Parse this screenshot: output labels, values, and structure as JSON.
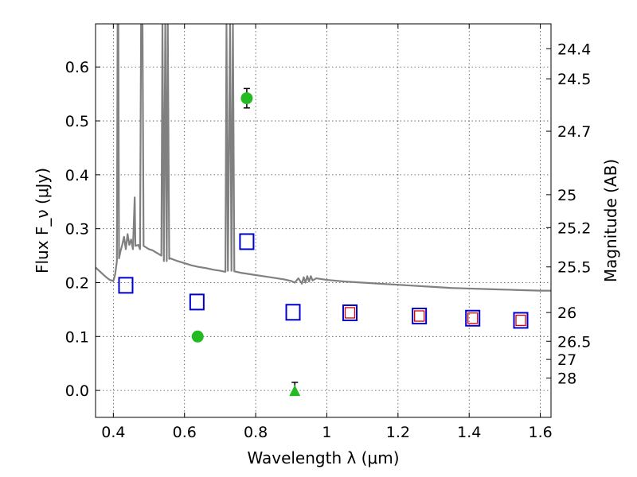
{
  "chart_data": {
    "type": "scatter",
    "xlabel": "Wavelength λ (μm)",
    "ylabel": "Flux F_ν (μJy)",
    "ylabel_right": "Magnitude (AB)",
    "xlim": [
      0.35,
      1.63
    ],
    "ylim": [
      -0.05,
      0.68
    ],
    "x_ticks": [
      0.4,
      0.6,
      0.8,
      1.0,
      1.2,
      1.4,
      1.6
    ],
    "x_tick_labels": [
      "0.4",
      "0.6",
      "0.8",
      "1",
      "1.2",
      "1.4",
      "1.6"
    ],
    "y_ticks": [
      0.0,
      0.1,
      0.2,
      0.3,
      0.4,
      0.5,
      0.6
    ],
    "y_tick_labels": [
      "0.0",
      "0.1",
      "0.2",
      "0.3",
      "0.4",
      "0.5",
      "0.6"
    ],
    "right_ticks": [
      {
        "label": "24.4",
        "flux": 0.6339
      },
      {
        "label": "24.5",
        "flux": 0.5781
      },
      {
        "label": "24.7",
        "flux": 0.4808
      },
      {
        "label": "25",
        "flux": 0.3631
      },
      {
        "label": "25.2",
        "flux": 0.302
      },
      {
        "label": "25.5",
        "flux": 0.2291
      },
      {
        "label": "26",
        "flux": 0.1445
      },
      {
        "label": "26.5",
        "flux": 0.0912
      },
      {
        "label": "27",
        "flux": 0.0575
      },
      {
        "label": "28",
        "flux": 0.0229
      }
    ],
    "grid": true,
    "colors": {
      "spectrum": "#808080",
      "detection": "#22bb22",
      "model_outer": "#0000cc",
      "model_inner": "#dd0000",
      "errorbar": "#000000"
    },
    "series": [
      {
        "kind": "line",
        "points": [
          [
            0.35,
            0.228
          ],
          [
            0.36,
            0.222
          ],
          [
            0.37,
            0.216
          ],
          [
            0.38,
            0.21
          ],
          [
            0.39,
            0.205
          ],
          [
            0.4,
            0.203
          ],
          [
            0.405,
            0.215
          ],
          [
            0.41,
            0.24
          ],
          [
            0.412,
            0.68
          ],
          [
            0.414,
            0.68
          ],
          [
            0.416,
            0.245
          ],
          [
            0.42,
            0.258
          ],
          [
            0.425,
            0.27
          ],
          [
            0.43,
            0.285
          ],
          [
            0.435,
            0.262
          ],
          [
            0.44,
            0.29
          ],
          [
            0.445,
            0.27
          ],
          [
            0.45,
            0.28
          ],
          [
            0.455,
            0.262
          ],
          [
            0.46,
            0.358
          ],
          [
            0.462,
            0.268
          ],
          [
            0.47,
            0.27
          ],
          [
            0.475,
            0.262
          ],
          [
            0.478,
            0.68
          ],
          [
            0.482,
            0.68
          ],
          [
            0.485,
            0.268
          ],
          [
            0.49,
            0.266
          ],
          [
            0.5,
            0.262
          ],
          [
            0.51,
            0.26
          ],
          [
            0.52,
            0.256
          ],
          [
            0.53,
            0.252
          ],
          [
            0.535,
            0.25
          ],
          [
            0.538,
            0.68
          ],
          [
            0.542,
            0.24
          ],
          [
            0.546,
            0.68
          ],
          [
            0.55,
            0.24
          ],
          [
            0.553,
            0.68
          ],
          [
            0.557,
            0.244
          ],
          [
            0.56,
            0.245
          ],
          [
            0.58,
            0.24
          ],
          [
            0.6,
            0.236
          ],
          [
            0.62,
            0.232
          ],
          [
            0.64,
            0.229
          ],
          [
            0.66,
            0.227
          ],
          [
            0.68,
            0.224
          ],
          [
            0.7,
            0.222
          ],
          [
            0.715,
            0.22
          ],
          [
            0.718,
            0.68
          ],
          [
            0.722,
            0.222
          ],
          [
            0.728,
            0.68
          ],
          [
            0.732,
            0.222
          ],
          [
            0.736,
            0.68
          ],
          [
            0.74,
            0.221
          ],
          [
            0.76,
            0.218
          ],
          [
            0.78,
            0.216
          ],
          [
            0.8,
            0.214
          ],
          [
            0.82,
            0.212
          ],
          [
            0.84,
            0.21
          ],
          [
            0.86,
            0.208
          ],
          [
            0.88,
            0.206
          ],
          [
            0.9,
            0.203
          ],
          [
            0.91,
            0.2
          ],
          [
            0.92,
            0.208
          ],
          [
            0.93,
            0.198
          ],
          [
            0.935,
            0.21
          ],
          [
            0.94,
            0.2
          ],
          [
            0.945,
            0.212
          ],
          [
            0.95,
            0.202
          ],
          [
            0.955,
            0.212
          ],
          [
            0.96,
            0.204
          ],
          [
            0.97,
            0.208
          ],
          [
            1.0,
            0.205
          ],
          [
            1.05,
            0.202
          ],
          [
            1.1,
            0.2
          ],
          [
            1.15,
            0.198
          ],
          [
            1.2,
            0.196
          ],
          [
            1.25,
            0.194
          ],
          [
            1.3,
            0.192
          ],
          [
            1.35,
            0.19
          ],
          [
            1.4,
            0.189
          ],
          [
            1.45,
            0.188
          ],
          [
            1.5,
            0.187
          ],
          [
            1.55,
            0.186
          ],
          [
            1.6,
            0.185
          ],
          [
            1.63,
            0.185
          ]
        ]
      },
      {
        "kind": "detections",
        "points": [
          {
            "x": 0.775,
            "y": 0.542,
            "err": 0.018
          },
          {
            "x": 0.637,
            "y": 0.1,
            "err": 0.007
          }
        ]
      },
      {
        "kind": "upper_limit",
        "points": [
          {
            "x": 0.91,
            "y": 0.0,
            "err": 0.015
          }
        ]
      },
      {
        "kind": "model_squares",
        "points": [
          {
            "x": 0.435,
            "y": 0.195,
            "inner": false
          },
          {
            "x": 0.635,
            "y": 0.164,
            "inner": false
          },
          {
            "x": 0.775,
            "y": 0.276,
            "inner": false
          },
          {
            "x": 0.905,
            "y": 0.145,
            "inner": false
          },
          {
            "x": 1.065,
            "y": 0.144,
            "inner": true
          },
          {
            "x": 1.26,
            "y": 0.138,
            "inner": true
          },
          {
            "x": 1.41,
            "y": 0.134,
            "inner": true
          },
          {
            "x": 1.545,
            "y": 0.13,
            "inner": true
          }
        ]
      }
    ]
  }
}
